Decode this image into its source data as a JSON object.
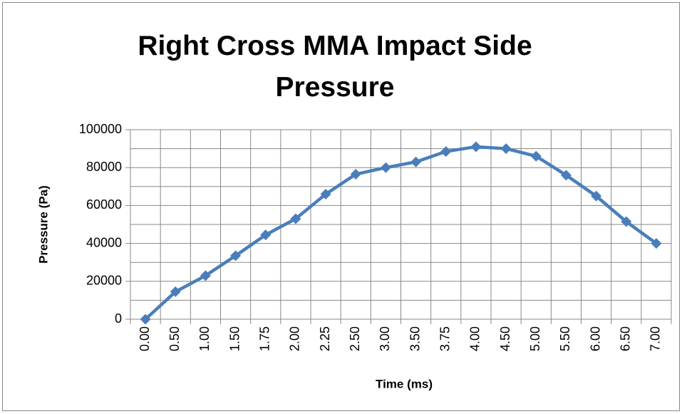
{
  "chart_data": {
    "type": "line",
    "title": "Right Cross MMA Impact Side Pressure",
    "x_label": "Time (ms)",
    "y_label": "Pressure (Pa)",
    "categories": [
      "0.00",
      "0.50",
      "1.00",
      "1.50",
      "1.75",
      "2.00",
      "2.25",
      "2.50",
      "3.00",
      "3.50",
      "3.75",
      "4.00",
      "4.50",
      "5.00",
      "5.50",
      "6.00",
      "6.50",
      "7.00"
    ],
    "series": [
      {
        "name": "Pressure",
        "color": "#4a7ebb",
        "values": [
          0,
          14500,
          23000,
          33500,
          44500,
          53000,
          66000,
          76500,
          80000,
          83000,
          88500,
          91000,
          90000,
          86000,
          76000,
          65000,
          51500,
          40000
        ]
      }
    ],
    "ylim": [
      0,
      100000
    ],
    "yticks": [
      0,
      20000,
      40000,
      60000,
      80000,
      100000
    ],
    "minor_yticks": [
      10000,
      30000,
      50000,
      70000,
      90000
    ],
    "grid": true
  }
}
